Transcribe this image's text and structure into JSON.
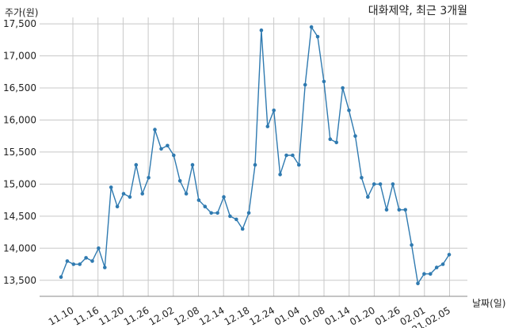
{
  "chart_data": {
    "type": "line",
    "title": "대화제약, 최근 3개월",
    "ylabel": "주가(원)",
    "xlabel": "날짜(일)",
    "ylim": [
      13250,
      17600
    ],
    "grid": true,
    "yticks": [
      13500,
      14000,
      14500,
      15000,
      15500,
      16000,
      16500,
      17000,
      17500
    ],
    "ytick_labels": [
      "13,500",
      "14,000",
      "14,500",
      "15,000",
      "15,500",
      "16,000",
      "16,500",
      "17,000",
      "17,500"
    ],
    "xtick_labels": [
      "11.10",
      "11.16",
      "11.20",
      "11.26",
      "12.02",
      "12.08",
      "12.14",
      "12.18",
      "12.24",
      "01.04",
      "01.08",
      "01.14",
      "01.20",
      "01.26",
      "02.01",
      "21.02.05"
    ],
    "line_color": "#2f7ab0",
    "grid_color": "#c8c8c8",
    "series": [
      {
        "values": [
          13550,
          13800,
          13750,
          13750,
          13850,
          13800,
          14000,
          13700,
          14950,
          14650,
          14850,
          14800,
          15300,
          14850,
          15100,
          15850,
          15550,
          15600,
          15450,
          15050,
          14850,
          15300,
          14750,
          14650,
          14550,
          14550,
          14800,
          14500,
          14450,
          14300,
          14550,
          15300,
          17400,
          15900,
          16150,
          15150,
          15450,
          15450,
          15300,
          16550,
          17450,
          17300,
          16600,
          15700,
          15650,
          16500,
          16150,
          15750,
          15100,
          14800,
          15000,
          15000,
          14600,
          15000,
          14600,
          14600,
          14050,
          13450,
          13600,
          13600,
          13700,
          13750,
          13900
        ]
      }
    ]
  }
}
